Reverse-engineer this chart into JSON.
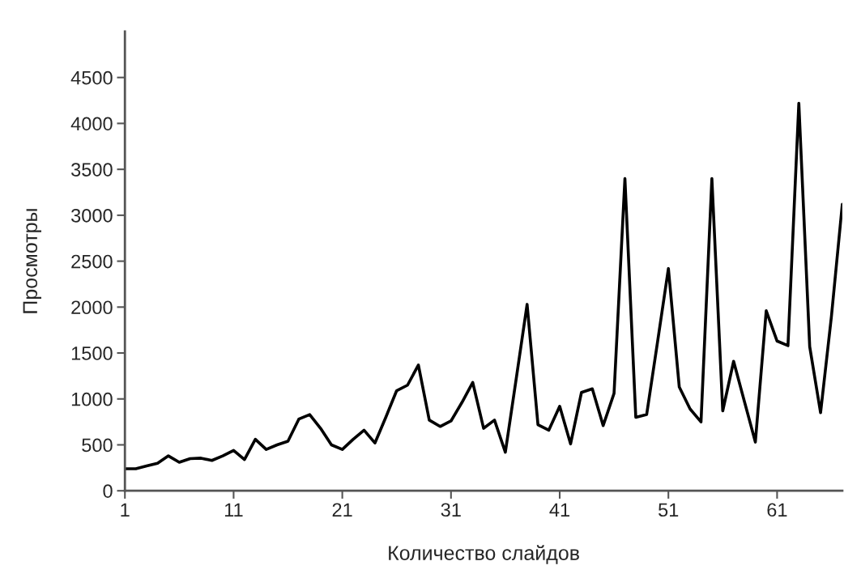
{
  "chart_data": {
    "type": "line",
    "xlabel": "Количество слайдов",
    "ylabel": "Просмотры",
    "x": [
      1,
      2,
      3,
      4,
      5,
      6,
      7,
      8,
      9,
      10,
      11,
      12,
      13,
      14,
      15,
      16,
      17,
      18,
      19,
      20,
      21,
      22,
      23,
      24,
      25,
      26,
      27,
      28,
      29,
      30,
      31,
      32,
      33,
      34,
      35,
      36,
      37,
      38,
      39,
      40,
      41,
      42,
      43,
      44,
      45,
      46,
      47,
      48,
      49,
      50,
      51,
      52,
      53,
      54,
      55,
      56,
      57,
      58,
      59,
      60,
      61,
      62,
      63,
      64,
      65,
      66,
      67
    ],
    "series": [
      {
        "color": "#000000",
        "values": [
          240,
          240,
          270,
          300,
          380,
          310,
          350,
          355,
          330,
          380,
          440,
          340,
          560,
          450,
          500,
          540,
          780,
          830,
          680,
          500,
          450,
          560,
          660,
          520,
          800,
          1090,
          1150,
          1370,
          770,
          700,
          760,
          960,
          1180,
          680,
          770,
          420,
          1220,
          2030,
          720,
          660,
          920,
          510,
          1070,
          1110,
          710,
          1060,
          3400,
          800,
          830,
          1620,
          2420,
          1130,
          890,
          750,
          3400,
          870,
          1410,
          970,
          530,
          1960,
          1630,
          1580,
          4220,
          1570,
          850,
          1900,
          3120
        ]
      }
    ],
    "xlim": [
      1,
      67
    ],
    "xticks": [
      1,
      11,
      21,
      31,
      41,
      51,
      61
    ],
    "ylim": [
      0,
      5000
    ],
    "yticks": [
      0,
      500,
      1000,
      1500,
      2000,
      2500,
      3000,
      3500,
      4000,
      4500
    ],
    "grid": false,
    "legend": false,
    "marker": "none",
    "line_style": "solid"
  }
}
